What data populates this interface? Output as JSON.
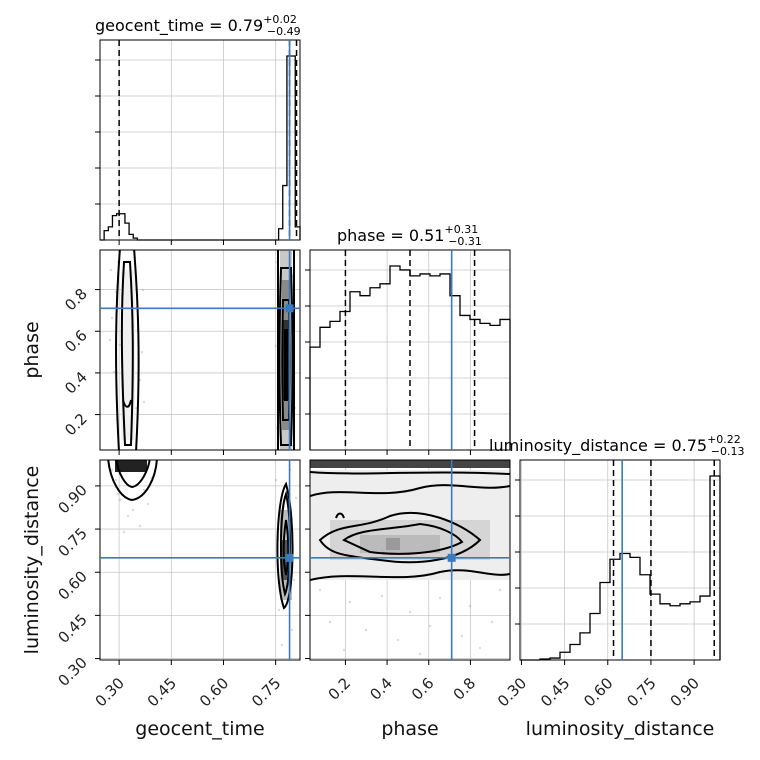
{
  "chart_data": {
    "type": "corner",
    "parameters": [
      "geocent_time",
      "phase",
      "luminosity_distance"
    ],
    "axis_labels": {
      "x": [
        "geocent_time",
        "phase",
        "luminosity_distance"
      ],
      "y": [
        "phase",
        "luminosity_distance"
      ]
    },
    "titles": [
      {
        "parameter": "geocent_time",
        "prefix": "geocent_time = ",
        "median": "0.79",
        "upper": "+0.02",
        "lower": "−0.49"
      },
      {
        "parameter": "phase",
        "prefix": "phase = ",
        "median": "0.51",
        "upper": "+0.31",
        "lower": "−0.31"
      },
      {
        "parameter": "luminosity_distance",
        "prefix": "luminosity_distance = ",
        "median": "0.75",
        "upper": "+0.22",
        "lower": "−0.13"
      }
    ],
    "ranges": {
      "geocent_time": [
        0.245,
        0.82
      ],
      "phase": [
        0.03,
        0.99
      ],
      "luminosity_distance": [
        0.295,
        0.99
      ]
    },
    "ticks": {
      "geocent_time": [
        0.3,
        0.45,
        0.6,
        0.75
      ],
      "phase": [
        0.2,
        0.4,
        0.6,
        0.8
      ],
      "luminosity_distance": [
        0.3,
        0.45,
        0.6,
        0.75,
        0.9
      ]
    },
    "tick_labels": {
      "geocent_time": [
        "0.30",
        "0.45",
        "0.60",
        "0.75"
      ],
      "phase": [
        "0.2",
        "0.4",
        "0.6",
        "0.8"
      ],
      "luminosity_distance": [
        "0.30",
        "0.45",
        "0.60",
        "0.75",
        "0.90"
      ]
    },
    "truths": {
      "geocent_time": 0.79,
      "phase": 0.71,
      "luminosity_distance": 0.65
    },
    "quantiles": {
      "geocent_time": [
        0.3,
        0.79,
        0.81
      ],
      "phase": [
        0.2,
        0.51,
        0.82
      ],
      "luminosity_distance": [
        0.62,
        0.75,
        0.97
      ]
    },
    "histograms": {
      "geocent_time": {
        "bin_edges": [
          0.245,
          0.2569,
          0.2689,
          0.2808,
          0.2928,
          0.3047,
          0.3167,
          0.3286,
          0.3406,
          0.3525,
          0.3645,
          0.7585,
          0.7704,
          0.7824,
          0.7943,
          0.8063,
          0.82
        ],
        "counts": [
          0,
          5,
          7,
          13,
          14,
          14,
          9,
          3,
          1,
          0,
          0,
          6,
          29,
          98,
          98,
          7
        ]
      },
      "phase": {
        "bin_edges": [
          0.03,
          0.078,
          0.126,
          0.174,
          0.222,
          0.27,
          0.318,
          0.366,
          0.414,
          0.462,
          0.51,
          0.558,
          0.606,
          0.654,
          0.702,
          0.75,
          0.798,
          0.846,
          0.894,
          0.942,
          0.99
        ],
        "counts": [
          52,
          62,
          65,
          70,
          80,
          78,
          82,
          84,
          93,
          91,
          88,
          89,
          88,
          89,
          78,
          68,
          66,
          64,
          63,
          66
        ]
      },
      "luminosity_distance": {
        "bin_edges": [
          0.295,
          0.3297,
          0.3645,
          0.3992,
          0.434,
          0.4688,
          0.5035,
          0.5383,
          0.573,
          0.6077,
          0.6425,
          0.6773,
          0.712,
          0.7468,
          0.7815,
          0.8163,
          0.851,
          0.8858,
          0.9205,
          0.9553,
          0.99
        ],
        "counts": [
          0,
          0,
          0.5,
          1,
          4,
          8,
          14,
          24,
          40,
          52,
          55,
          53,
          44,
          34,
          29,
          28,
          29,
          30,
          33,
          95
        ]
      }
    },
    "grid": true
  }
}
